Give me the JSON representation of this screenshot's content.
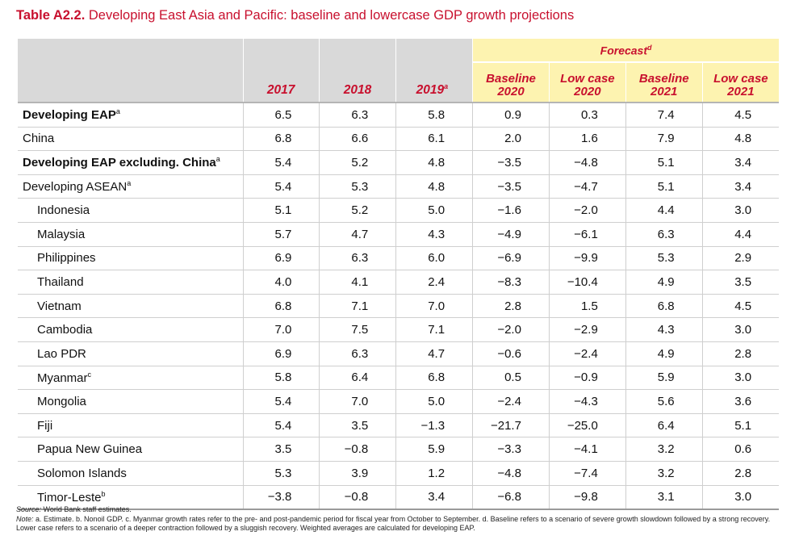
{
  "title": {
    "label": "Table A2.2.",
    "text": "Developing East Asia and Pacific: baseline and lowercase GDP growth projections"
  },
  "header": {
    "forecast": "Forecast",
    "forecast_sup": "d",
    "years": [
      {
        "text": "2017",
        "sup": ""
      },
      {
        "text": "2018",
        "sup": ""
      },
      {
        "text": "2019",
        "sup": "a"
      }
    ],
    "forecast_cols": [
      {
        "line1": "Baseline",
        "line2": "2020"
      },
      {
        "line1": "Low case",
        "line2": "2020"
      },
      {
        "line1": "Baseline",
        "line2": "2021"
      },
      {
        "line1": "Low case",
        "line2": "2021"
      }
    ]
  },
  "rows": [
    {
      "label": "Developing EAP",
      "sup": "a",
      "bold": true,
      "indent": false,
      "values": [
        "6.5",
        "6.3",
        "5.8",
        "0.9",
        "0.3",
        "7.4",
        "4.5"
      ]
    },
    {
      "label": "China",
      "sup": "",
      "bold": false,
      "indent": false,
      "values": [
        "6.8",
        "6.6",
        "6.1",
        "2.0",
        "1.6",
        "7.9",
        "4.8"
      ]
    },
    {
      "label": "Developing EAP excluding. China",
      "sup": "a",
      "bold": true,
      "indent": false,
      "values": [
        "5.4",
        "5.2",
        "4.8",
        "−3.5",
        "−4.8",
        "5.1",
        "3.4"
      ]
    },
    {
      "label": "Developing ASEAN",
      "sup": "a",
      "bold": false,
      "indent": false,
      "values": [
        "5.4",
        "5.3",
        "4.8",
        "−3.5",
        "−4.7",
        "5.1",
        "3.4"
      ]
    },
    {
      "label": "Indonesia",
      "sup": "",
      "bold": false,
      "indent": true,
      "values": [
        "5.1",
        "5.2",
        "5.0",
        "−1.6",
        "−2.0",
        "4.4",
        "3.0"
      ]
    },
    {
      "label": "Malaysia",
      "sup": "",
      "bold": false,
      "indent": true,
      "values": [
        "5.7",
        "4.7",
        "4.3",
        "−4.9",
        "−6.1",
        "6.3",
        "4.4"
      ]
    },
    {
      "label": "Philippines",
      "sup": "",
      "bold": false,
      "indent": true,
      "values": [
        "6.9",
        "6.3",
        "6.0",
        "−6.9",
        "−9.9",
        "5.3",
        "2.9"
      ]
    },
    {
      "label": "Thailand",
      "sup": "",
      "bold": false,
      "indent": true,
      "values": [
        "4.0",
        "4.1",
        "2.4",
        "−8.3",
        "−10.4",
        "4.9",
        "3.5"
      ]
    },
    {
      "label": "Vietnam",
      "sup": "",
      "bold": false,
      "indent": true,
      "values": [
        "6.8",
        "7.1",
        "7.0",
        "2.8",
        "1.5",
        "6.8",
        "4.5"
      ]
    },
    {
      "label": "Cambodia",
      "sup": "",
      "bold": false,
      "indent": true,
      "values": [
        "7.0",
        "7.5",
        "7.1",
        "−2.0",
        "−2.9",
        "4.3",
        "3.0"
      ]
    },
    {
      "label": "Lao PDR",
      "sup": "",
      "bold": false,
      "indent": true,
      "values": [
        "6.9",
        "6.3",
        "4.7",
        "−0.6",
        "−2.4",
        "4.9",
        "2.8"
      ]
    },
    {
      "label": "Myanmar",
      "sup": "c",
      "bold": false,
      "indent": true,
      "values": [
        "5.8",
        "6.4",
        "6.8",
        "0.5",
        "−0.9",
        "5.9",
        "3.0"
      ]
    },
    {
      "label": "Mongolia",
      "sup": "",
      "bold": false,
      "indent": true,
      "values": [
        "5.4",
        "7.0",
        "5.0",
        "−2.4",
        "−4.3",
        "5.6",
        "3.6"
      ]
    },
    {
      "label": "Fiji",
      "sup": "",
      "bold": false,
      "indent": true,
      "values": [
        "5.4",
        "3.5",
        "−1.3",
        "−21.7",
        "−25.0",
        "6.4",
        "5.1"
      ]
    },
    {
      "label": "Papua New Guinea",
      "sup": "",
      "bold": false,
      "indent": true,
      "values": [
        "3.5",
        "−0.8",
        "5.9",
        "−3.3",
        "−4.1",
        "3.2",
        "0.6"
      ]
    },
    {
      "label": "Solomon Islands",
      "sup": "",
      "bold": false,
      "indent": true,
      "values": [
        "5.3",
        "3.9",
        "1.2",
        "−4.8",
        "−7.4",
        "3.2",
        "2.8"
      ]
    },
    {
      "label": "Timor-Leste",
      "sup": "b",
      "bold": false,
      "indent": true,
      "values": [
        "−3.8",
        "−0.8",
        "3.4",
        "−6.8",
        "−9.8",
        "3.1",
        "3.0"
      ]
    }
  ],
  "notes": {
    "source_label": "Source:",
    "source_text": "World Bank staff estimates.",
    "note_label": "Note:",
    "note_text": "a. Estimate. b. Nonoil GDP. c. Myanmar growth rates refer to the pre- and post-pandemic period for fiscal year from October to September. d. Baseline refers to a scenario of severe growth slowdown followed by a strong recovery. Lower case refers to a scenario of a deeper contraction followed by a sluggish recovery. Weighted averages are calculated for developing EAP."
  }
}
